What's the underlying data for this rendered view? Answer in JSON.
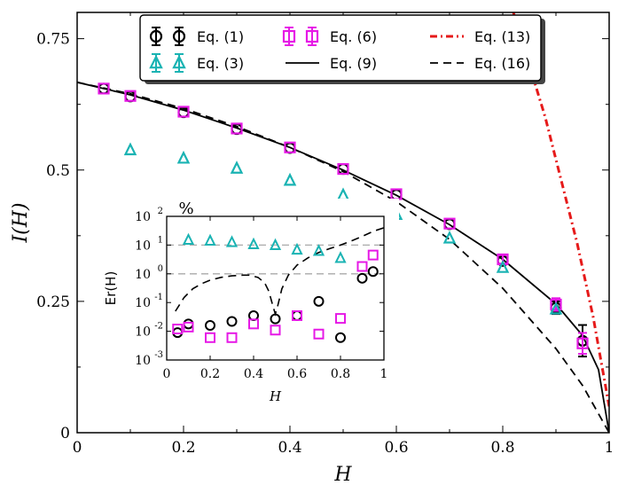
{
  "chart_data": [
    {
      "type": "scatter",
      "xlabel": "H",
      "ylabel": "I(H)",
      "xlim": [
        0,
        1
      ],
      "ylim": [
        0,
        0.8
      ],
      "x_ticks": [
        0,
        0.2,
        0.4,
        0.6,
        0.8,
        1
      ],
      "x_tick_labels": [
        "0",
        "0.2",
        "0.4",
        "0.6",
        "0.8",
        "1"
      ],
      "y_ticks": [
        0,
        0.25,
        0.5,
        0.75
      ],
      "y_tick_labels": [
        "0",
        "0.25",
        "0.5",
        "0.75"
      ],
      "legend_position": "top",
      "series": [
        {
          "name": "Eq. (1)",
          "marker": "circle",
          "color": "#000000",
          "x": [
            0.05,
            0.1,
            0.2,
            0.3,
            0.4,
            0.5,
            0.6,
            0.7,
            0.8,
            0.9,
            0.95
          ],
          "y": [
            0.655,
            0.64,
            0.61,
            0.578,
            0.542,
            0.502,
            0.453,
            0.397,
            0.327,
            0.238,
            0.175
          ],
          "err": [
            0,
            0,
            0,
            0,
            0,
            0,
            0,
            0,
            0,
            0.012,
            0.03
          ]
        },
        {
          "name": "Eq. (6)",
          "marker": "square",
          "color": "#e619e6",
          "x": [
            0.05,
            0.1,
            0.2,
            0.3,
            0.4,
            0.5,
            0.6,
            0.7,
            0.8,
            0.9,
            0.95
          ],
          "y": [
            0.655,
            0.641,
            0.611,
            0.579,
            0.543,
            0.502,
            0.454,
            0.398,
            0.33,
            0.244,
            0.17
          ],
          "err": [
            0,
            0,
            0,
            0,
            0,
            0,
            0,
            0,
            0.008,
            0.012,
            0.02
          ]
        },
        {
          "name": "Eq. (3)",
          "marker": "triangle",
          "color": "#1ab3b3",
          "x": [
            0.1,
            0.2,
            0.3,
            0.4,
            0.5,
            0.6,
            0.7,
            0.8,
            0.9
          ],
          "y": [
            0.538,
            0.522,
            0.503,
            0.48,
            0.452,
            0.415,
            0.37,
            0.314,
            0.235
          ],
          "err": [
            0,
            0,
            0,
            0,
            0,
            0,
            0,
            0,
            0
          ]
        },
        {
          "name": "Eq. (9)",
          "line": "solid",
          "color": "#000000",
          "x": [
            0,
            0.1,
            0.2,
            0.3,
            0.4,
            0.5,
            0.6,
            0.7,
            0.8,
            0.9,
            0.95,
            0.98,
            1.0
          ],
          "y": [
            0.667,
            0.643,
            0.614,
            0.58,
            0.543,
            0.5,
            0.452,
            0.396,
            0.33,
            0.245,
            0.185,
            0.12,
            0.0
          ]
        },
        {
          "name": "Eq. (13)",
          "line": "dashdot",
          "color": "#e61a1a",
          "x": [
            0.82,
            0.85,
            0.88,
            0.91,
            0.94,
            0.97,
            1.0
          ],
          "y": [
            0.8,
            0.7,
            0.6,
            0.48,
            0.36,
            0.22,
            0.05
          ]
        },
        {
          "name": "Eq. (16)",
          "line": "dashed",
          "color": "#000000",
          "x": [
            0,
            0.1,
            0.2,
            0.3,
            0.4,
            0.5,
            0.6,
            0.7,
            0.8,
            0.9,
            0.95,
            1.0
          ],
          "y": [
            0.667,
            0.645,
            0.617,
            0.583,
            0.543,
            0.497,
            0.44,
            0.368,
            0.275,
            0.16,
            0.09,
            0.0
          ]
        }
      ]
    },
    {
      "type": "scatter",
      "title": "%",
      "xlabel": "H",
      "ylabel": "Er(H)",
      "xlim": [
        0,
        1
      ],
      "ylim_log10": [
        -3,
        2
      ],
      "x_ticks": [
        0,
        0.2,
        0.4,
        0.6,
        0.8,
        1
      ],
      "x_tick_labels": [
        "0",
        "0.2",
        "0.4",
        "0.6",
        "0.8",
        "1"
      ],
      "y_ticks_log10": [
        -3,
        -2,
        -1,
        0,
        1,
        2
      ],
      "y_tick_labels": [
        {
          "base": "10",
          "exp": "-3"
        },
        {
          "base": "10",
          "exp": "-2"
        },
        {
          "base": "10",
          "exp": "-1"
        },
        {
          "base": "10",
          "exp": "0"
        },
        {
          "base": "10",
          "exp": "1"
        },
        {
          "base": "10",
          "exp": "2"
        }
      ],
      "reference_lines": [
        1,
        10
      ],
      "series": [
        {
          "name": "Eq. (1)",
          "marker": "circle",
          "color": "#000000",
          "x": [
            0.05,
            0.1,
            0.2,
            0.3,
            0.4,
            0.5,
            0.6,
            0.7,
            0.8,
            0.9,
            0.95
          ],
          "y": [
            0.009,
            0.018,
            0.016,
            0.022,
            0.035,
            0.027,
            0.035,
            0.11,
            0.006,
            0.7,
            1.2
          ]
        },
        {
          "name": "Eq. (6)",
          "marker": "square",
          "color": "#e619e6",
          "x": [
            0.05,
            0.1,
            0.2,
            0.3,
            0.4,
            0.5,
            0.6,
            0.7,
            0.8,
            0.9,
            0.95
          ],
          "y": [
            0.012,
            0.014,
            0.006,
            0.006,
            0.018,
            0.011,
            0.035,
            0.008,
            0.028,
            1.8,
            4.5
          ]
        },
        {
          "name": "Eq. (3)",
          "marker": "triangle",
          "color": "#1ab3b3",
          "x": [
            0.1,
            0.2,
            0.3,
            0.4,
            0.5,
            0.6,
            0.7,
            0.8
          ],
          "y": [
            15,
            14,
            12.5,
            10.5,
            9.8,
            6.8,
            6.2,
            3.5
          ]
        },
        {
          "name": "Eq. (16)",
          "line": "dashed",
          "color": "#000000",
          "x": [
            0.04,
            0.08,
            0.12,
            0.16,
            0.2,
            0.25,
            0.3,
            0.35,
            0.38,
            0.42,
            0.45,
            0.47,
            0.49,
            0.5,
            0.51,
            0.53,
            0.56,
            0.6,
            0.65,
            0.7,
            0.75,
            0.8,
            0.85,
            0.9,
            0.95,
            1.0
          ],
          "y": [
            0.05,
            0.15,
            0.3,
            0.45,
            0.6,
            0.75,
            0.85,
            0.9,
            0.9,
            0.75,
            0.5,
            0.25,
            0.07,
            0.04,
            0.07,
            0.3,
            0.9,
            2.0,
            3.6,
            5.5,
            7.5,
            10,
            14,
            20,
            30,
            40
          ]
        }
      ]
    }
  ]
}
